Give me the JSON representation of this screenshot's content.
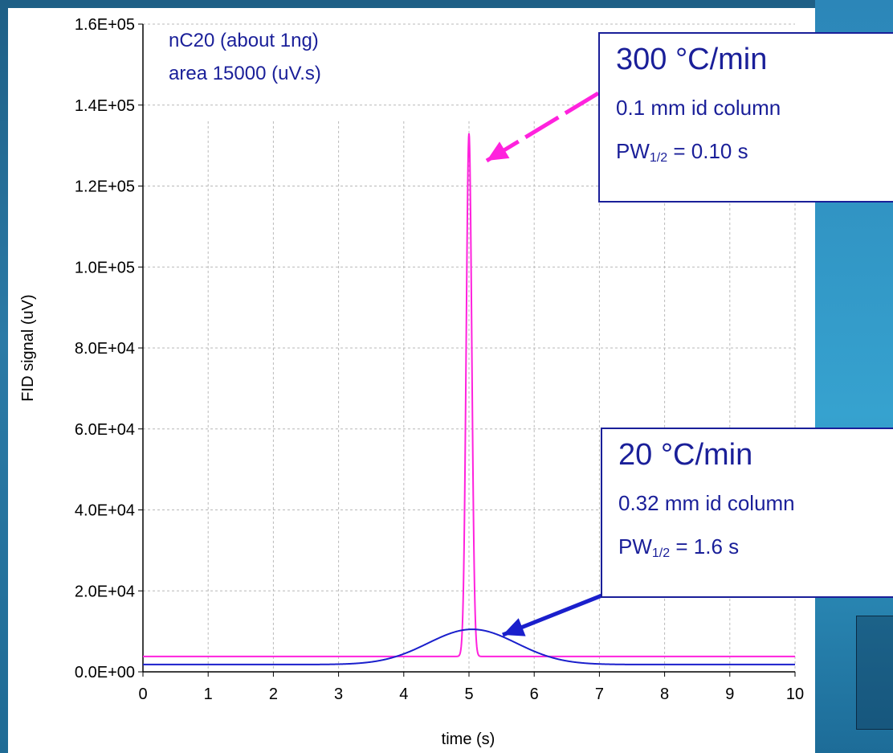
{
  "chart_data": {
    "type": "line",
    "xlabel": "time (s)",
    "ylabel": "FID signal (uV)",
    "xlim": [
      0,
      10
    ],
    "ylim": [
      0,
      160000
    ],
    "x_ticks": [
      "0",
      "1",
      "2",
      "3",
      "4",
      "5",
      "6",
      "7",
      "8",
      "9",
      "10"
    ],
    "y_ticks": [
      "0.0E+00",
      "2.0E+04",
      "4.0E+04",
      "6.0E+04",
      "8.0E+04",
      "1.0E+05",
      "1.2E+05",
      "1.4E+05",
      "1.6E+05"
    ],
    "grid": "dashed",
    "annotation_lines": [
      "nC20 (about 1ng)",
      "area 15000 (uV.s)"
    ],
    "series": [
      {
        "color": "#ff22dd",
        "baseline": 3800,
        "peak_x": 5.0,
        "peak_y": 133000,
        "half_width_s": 0.1
      },
      {
        "color": "#1a1fcc",
        "baseline": 1800,
        "peak_x": 5.05,
        "peak_y": 10500,
        "half_width_s": 1.6
      }
    ],
    "callouts": [
      {
        "rate": "300 °C/min",
        "column": "0.1 mm id column",
        "pw_label": "PW",
        "pw_sub": "1/2",
        "pw_value": " = 0.10 s"
      },
      {
        "rate": "20 °C/min",
        "column": "0.32 mm id column",
        "pw_label": "PW",
        "pw_sub": "1/2",
        "pw_value": " = 1.6 s"
      }
    ]
  }
}
